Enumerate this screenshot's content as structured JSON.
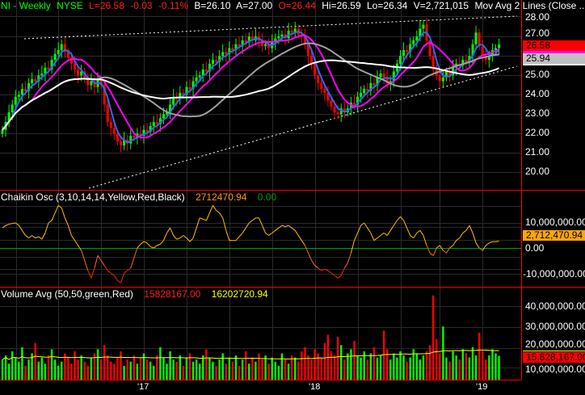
{
  "header": {
    "symbol": "NI - Weekly",
    "exchange": "NYSE",
    "last": "L=26.58",
    "change": "-0.03",
    "change_pct": "-0.11%",
    "bid": "B=26.10",
    "ask": "A=27.00",
    "open": "O=26.44",
    "high": "Hi=26.59",
    "low": "Lo=26.34",
    "volume": "V=2,721,015",
    "study": "Mov Avg 2 Lines (Close ..."
  },
  "price_axis": {
    "ticks": [
      "28.00",
      "27.00",
      "25.00",
      "24.00",
      "23.00",
      "22.00",
      "21.00",
      "20.00"
    ],
    "last_label": "26.58",
    "ma_label": "25.94"
  },
  "chaikin": {
    "label": "Chaikin Osc (3,10,14,14,Yellow,Red,Black)",
    "value": "2712470.94",
    "zero": "0.00",
    "ticks": [
      "10,000,000.00",
      "0.00",
      "-10,000,000.00"
    ],
    "axis_label": "2,712,470.94"
  },
  "volume": {
    "label": "Volume Avg (50,50,green,Red)",
    "value": "15828167.00",
    "avg": "16202720.94",
    "ticks": [
      "40,000,000.00",
      "30,000,000.00",
      "20,000,000.00",
      "10,000,000.00"
    ],
    "axis_label": "15,828,167.00"
  },
  "x_axis": {
    "ticks": [
      "'17",
      "'18",
      "'19"
    ]
  },
  "colors": {
    "up": "#00ff00",
    "down": "#ff0000",
    "ma_fast": "#2a6bff",
    "ma_mid": "#ff00ff",
    "ma_slow": "#a0a0a0",
    "ma_long": "#ffffff",
    "separator": "#ff0000",
    "grid": "#2a2a2a"
  },
  "chart_data": {
    "type": "line",
    "title": "NI - Weekly NYSE",
    "ylim": [
      19,
      28.5
    ],
    "closes": [
      22.2,
      22.6,
      23.1,
      23.5,
      23.9,
      24.0,
      24.3,
      24.2,
      24.6,
      24.8,
      24.7,
      25.0,
      25.1,
      25.4,
      25.3,
      25.8,
      26.1,
      26.3,
      26.6,
      26.2,
      25.9,
      25.6,
      25.3,
      25.0,
      25.2,
      24.8,
      24.5,
      24.7,
      24.4,
      24.8,
      24.5,
      23.5,
      22.6,
      22.3,
      22.0,
      21.6,
      21.4,
      21.7,
      21.5,
      21.9,
      21.8,
      22.0,
      21.9,
      22.2,
      22.1,
      22.4,
      22.6,
      22.5,
      22.8,
      23.0,
      23.1,
      23.5,
      23.9,
      23.8,
      24.1,
      24.0,
      24.4,
      24.3,
      24.7,
      24.9,
      25.0,
      25.3,
      25.2,
      25.6,
      25.8,
      25.7,
      26.0,
      26.2,
      26.1,
      26.4,
      26.3,
      26.6,
      26.5,
      26.8,
      26.7,
      27.0,
      26.8,
      27.0,
      26.8,
      26.5,
      26.6,
      26.4,
      26.7,
      26.9,
      27.0,
      27.1,
      26.9,
      27.3,
      27.2,
      27.4,
      27.1,
      27.0,
      26.6,
      26.0,
      25.6,
      25.0,
      24.6,
      24.3,
      24.1,
      23.7,
      23.4,
      23.1,
      23.0,
      23.3,
      23.1,
      23.3,
      23.6,
      23.5,
      23.9,
      24.1,
      24.3,
      24.2,
      24.6,
      24.5,
      24.9,
      25.1,
      24.9,
      24.6,
      24.7,
      25.2,
      25.6,
      26.0,
      26.3,
      26.2,
      26.6,
      26.8,
      27.0,
      27.4,
      27.6,
      26.8,
      26.0,
      25.3,
      25.0,
      24.7,
      24.9,
      25.2,
      25.0,
      25.4,
      25.6,
      25.5,
      25.8,
      25.7,
      26.0,
      26.6,
      27.2,
      26.5,
      26.0,
      25.8,
      26.0,
      26.3,
      26.4,
      26.58
    ],
    "chaikin_millions": [
      8,
      9,
      9.5,
      9.8,
      10,
      9,
      7,
      5,
      4,
      5,
      4,
      4.5,
      3.5,
      6,
      10,
      11,
      14,
      17,
      16,
      12,
      9,
      5,
      3,
      1,
      -1,
      -5,
      -9,
      -12,
      -8,
      -3,
      -5,
      -7,
      -9,
      -10,
      -11,
      -13,
      -14,
      -10,
      -9,
      -8,
      -4,
      0,
      1.5,
      2.6,
      2,
      0.5,
      0,
      1,
      1.5,
      3,
      6,
      8,
      5,
      3.5,
      4,
      5,
      4,
      2.5,
      4,
      8,
      12,
      11.5,
      11,
      14,
      17,
      15,
      14,
      12,
      7,
      3,
      3,
      3,
      4.5,
      6,
      8,
      10,
      11,
      12,
      12,
      9,
      6,
      5,
      6,
      7,
      8,
      9,
      8.5,
      9,
      8,
      7,
      5,
      3,
      1,
      -2,
      -5,
      -7,
      -8,
      -9,
      -8.5,
      -9,
      -10,
      -11,
      -12,
      -11,
      -8,
      -6,
      -2,
      3,
      6,
      9,
      10,
      8,
      6,
      3,
      4,
      5,
      6,
      5,
      7,
      9,
      11,
      12.5,
      11,
      8,
      5,
      4,
      6,
      7,
      5,
      1,
      -2,
      -3,
      0,
      1,
      -1,
      -2,
      0,
      1,
      3,
      4,
      6,
      7,
      9,
      6,
      2,
      0,
      -1,
      1,
      2,
      2.5,
      2.5,
      2.7
    ],
    "volume_millions": [
      14,
      16,
      12,
      18,
      15,
      13,
      20,
      11,
      14,
      17,
      22,
      13,
      15,
      12,
      16,
      19,
      14,
      11,
      13,
      17,
      15,
      12,
      18,
      14,
      16,
      13,
      11,
      15,
      17,
      19,
      14,
      21,
      16,
      13,
      12,
      15,
      18,
      11,
      14,
      13,
      16,
      12,
      15,
      17,
      14,
      13,
      11,
      16,
      20,
      15,
      12,
      18,
      14,
      13,
      16,
      11,
      15,
      17,
      13,
      14,
      12,
      16,
      19,
      15,
      13,
      11,
      14,
      17,
      12,
      15,
      13,
      16,
      11,
      14,
      18,
      12,
      15,
      13,
      17,
      14,
      16,
      12,
      15,
      13,
      11,
      17,
      14,
      12,
      16,
      15,
      13,
      18,
      20,
      16,
      14,
      19,
      17,
      15,
      22,
      26,
      18,
      16,
      25,
      21,
      14,
      17,
      19,
      23,
      16,
      15,
      18,
      14,
      17,
      20,
      15,
      16,
      28,
      19,
      14,
      17,
      15,
      18,
      16,
      13,
      15,
      19,
      17,
      14,
      16,
      18,
      21,
      45,
      24,
      17,
      30,
      15,
      13,
      18,
      16,
      14,
      19,
      17,
      15,
      20,
      16,
      27,
      18,
      14,
      16,
      19,
      17,
      15.8
    ]
  }
}
